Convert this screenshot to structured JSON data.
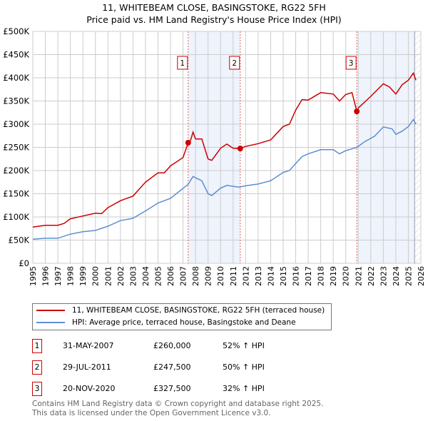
{
  "title_line1": "11, WHITEBEAM CLOSE, BASINGSTOKE, RG22 5FH",
  "title_line2": "Price paid vs. HM Land Registry's House Price Index (HPI)",
  "chart_data": {
    "type": "line",
    "xlim": [
      1995,
      2026
    ],
    "ylim": [
      0,
      500000
    ],
    "x_ticks": [
      "1995",
      "1996",
      "1997",
      "1998",
      "1999",
      "2000",
      "2001",
      "2002",
      "2003",
      "2004",
      "2005",
      "2006",
      "2007",
      "2008",
      "2009",
      "2010",
      "2011",
      "2012",
      "2013",
      "2014",
      "2015",
      "2016",
      "2017",
      "2018",
      "2019",
      "2020",
      "2021",
      "2022",
      "2023",
      "2024",
      "2025",
      "2026"
    ],
    "y_ticks": [
      {
        "v": 0,
        "label": "£0"
      },
      {
        "v": 50000,
        "label": "£50K"
      },
      {
        "v": 100000,
        "label": "£100K"
      },
      {
        "v": 150000,
        "label": "£150K"
      },
      {
        "v": 200000,
        "label": "£200K"
      },
      {
        "v": 250000,
        "label": "£250K"
      },
      {
        "v": 300000,
        "label": "£300K"
      },
      {
        "v": 350000,
        "label": "£350K"
      },
      {
        "v": 400000,
        "label": "£400K"
      },
      {
        "v": 450000,
        "label": "£450K"
      },
      {
        "v": 500000,
        "label": "£500K"
      }
    ],
    "grid": true,
    "shaded_periods": [
      [
        2007.41,
        2011.57
      ],
      [
        2020.89,
        2025.5
      ]
    ],
    "future_hatch_from": 2025.5,
    "series": [
      {
        "name": "11, WHITEBEAM CLOSE, BASINGSTOKE, RG22 5FH (terraced house)",
        "color": "#cc0000",
        "x": [
          1995,
          1996,
          1997,
          1997.5,
          1998,
          1999,
          2000,
          2000.5,
          2001,
          2002,
          2003,
          2003.5,
          2004,
          2005,
          2005.5,
          2006,
          2007,
          2007.41,
          2007.6,
          2007.8,
          2008,
          2008.5,
          2009,
          2009.3,
          2010,
          2010.5,
          2011,
          2011.57,
          2012,
          2013,
          2014,
          2015,
          2015.5,
          2016,
          2016.5,
          2017,
          2018,
          2019,
          2019.5,
          2020,
          2020.5,
          2020.88,
          2021,
          2022,
          2023,
          2023.5,
          2024,
          2024.5,
          2025,
          2025.4,
          2025.6
        ],
        "y": [
          78000,
          82000,
          82000,
          86000,
          96000,
          102000,
          108000,
          107000,
          120000,
          135000,
          145000,
          160000,
          175000,
          195000,
          195000,
          210000,
          228000,
          260000,
          265000,
          283000,
          268000,
          268000,
          225000,
          222000,
          248000,
          257000,
          248000,
          247500,
          252000,
          258000,
          266000,
          295000,
          300000,
          330000,
          353000,
          352000,
          368000,
          365000,
          350000,
          364000,
          368000,
          327500,
          335000,
          360000,
          387000,
          380000,
          365000,
          385000,
          395000,
          410000,
          395000
        ]
      },
      {
        "name": "HPI: Average price, terraced house, Basingstoke and Deane",
        "color": "#5b8fd0",
        "x": [
          1995,
          1996,
          1997,
          1998,
          1999,
          2000,
          2001,
          2002,
          2003,
          2004,
          2005,
          2006,
          2006.5,
          2007.4,
          2007.8,
          2008.5,
          2009,
          2009.3,
          2010,
          2010.5,
          2011.5,
          2012,
          2013,
          2014,
          2015,
          2015.5,
          2016.5,
          2017,
          2018,
          2019,
          2019.5,
          2020,
          2020.9,
          2021.5,
          2022.3,
          2023,
          2023.7,
          2024,
          2024.5,
          2025,
          2025.4,
          2025.6
        ],
        "y": [
          52000,
          54000,
          54000,
          63000,
          68000,
          71000,
          80000,
          92000,
          97000,
          113000,
          130000,
          140000,
          151000,
          170000,
          187000,
          178000,
          150000,
          146000,
          162000,
          168000,
          164000,
          167000,
          171000,
          178000,
          196000,
          200000,
          230000,
          236000,
          245000,
          245000,
          236000,
          243000,
          250000,
          262000,
          274000,
          294000,
          290000,
          278000,
          285000,
          295000,
          310000,
          300000
        ]
      }
    ],
    "sales": [
      {
        "n": "1",
        "x": 2007.41,
        "price": 260000,
        "date": "31-MAY-2007",
        "price_label": "£260,000",
        "hpi": "52% ↑ HPI"
      },
      {
        "n": "2",
        "x": 2011.57,
        "price": 247500,
        "date": "29-JUL-2011",
        "price_label": "£247,500",
        "hpi": "50% ↑ HPI"
      },
      {
        "n": "3",
        "x": 2020.88,
        "price": 327500,
        "date": "20-NOV-2020",
        "price_label": "£327,500",
        "hpi": "32% ↑ HPI"
      }
    ]
  },
  "legend": {
    "red": "11, WHITEBEAM CLOSE, BASINGSTOKE, RG22 5FH (terraced house)",
    "blue": "HPI: Average price, terraced house, Basingstoke and Deane"
  },
  "footer1": "Contains HM Land Registry data © Crown copyright and database right 2025.",
  "footer2": "This data is licensed under the Open Government Licence v3.0."
}
